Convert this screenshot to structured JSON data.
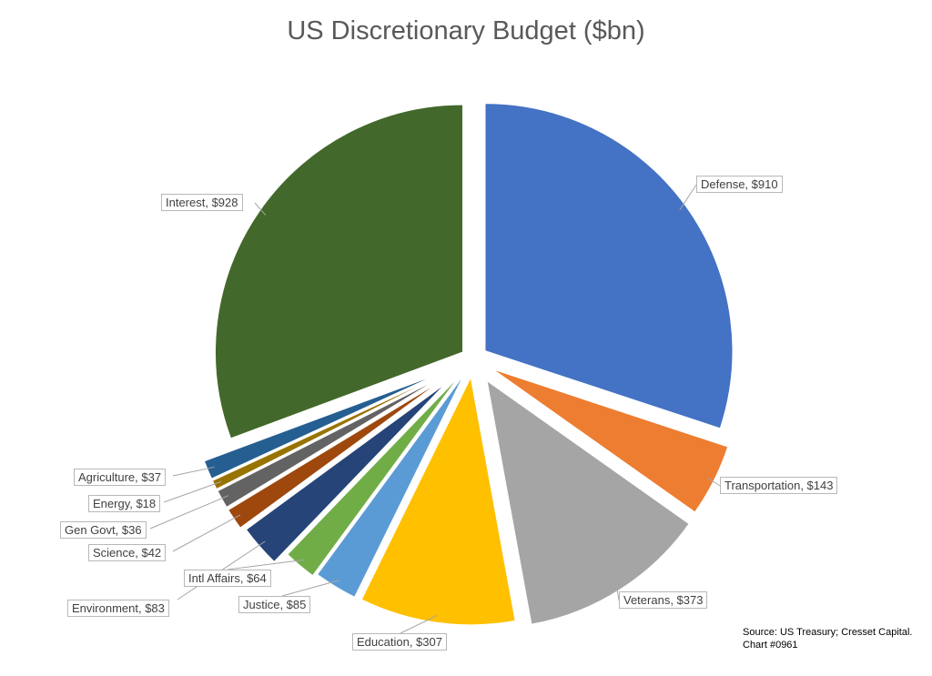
{
  "chart_data": {
    "type": "pie",
    "title": "US Discretionary Budget ($bn)",
    "slices": [
      {
        "label": "Defense, $910",
        "category": "Defense",
        "value": 910,
        "color": "#4472c4"
      },
      {
        "label": "Transportation, $143",
        "category": "Transportation",
        "value": 143,
        "color": "#ed7d31"
      },
      {
        "label": "Veterans, $373",
        "category": "Veterans",
        "value": 373,
        "color": "#a5a5a5"
      },
      {
        "label": "Education, $307",
        "category": "Education",
        "value": 307,
        "color": "#ffc000"
      },
      {
        "label": "Justice, $85",
        "category": "Justice",
        "value": 85,
        "color": "#5b9bd5"
      },
      {
        "label": "Intl Affairs, $64",
        "category": "Intl Affairs",
        "value": 64,
        "color": "#70ad47"
      },
      {
        "label": "Environment, $83",
        "category": "Environment",
        "value": 83,
        "color": "#264478"
      },
      {
        "label": "Science, $42",
        "category": "Science",
        "value": 42,
        "color": "#9e480e"
      },
      {
        "label": "Gen Govt, $36",
        "category": "Gen Govt",
        "value": 36,
        "color": "#636363"
      },
      {
        "label": "Energy, $18",
        "category": "Energy",
        "value": 18,
        "color": "#997300"
      },
      {
        "label": "Agriculture, $37",
        "category": "Agriculture",
        "value": 37,
        "color": "#255e91"
      },
      {
        "label": "Interest, $928",
        "category": "Interest",
        "value": 928,
        "color": "#43682b"
      }
    ],
    "source": "Source: US Treasury; Cresset Capital.",
    "chart_id": "Chart #0961"
  }
}
